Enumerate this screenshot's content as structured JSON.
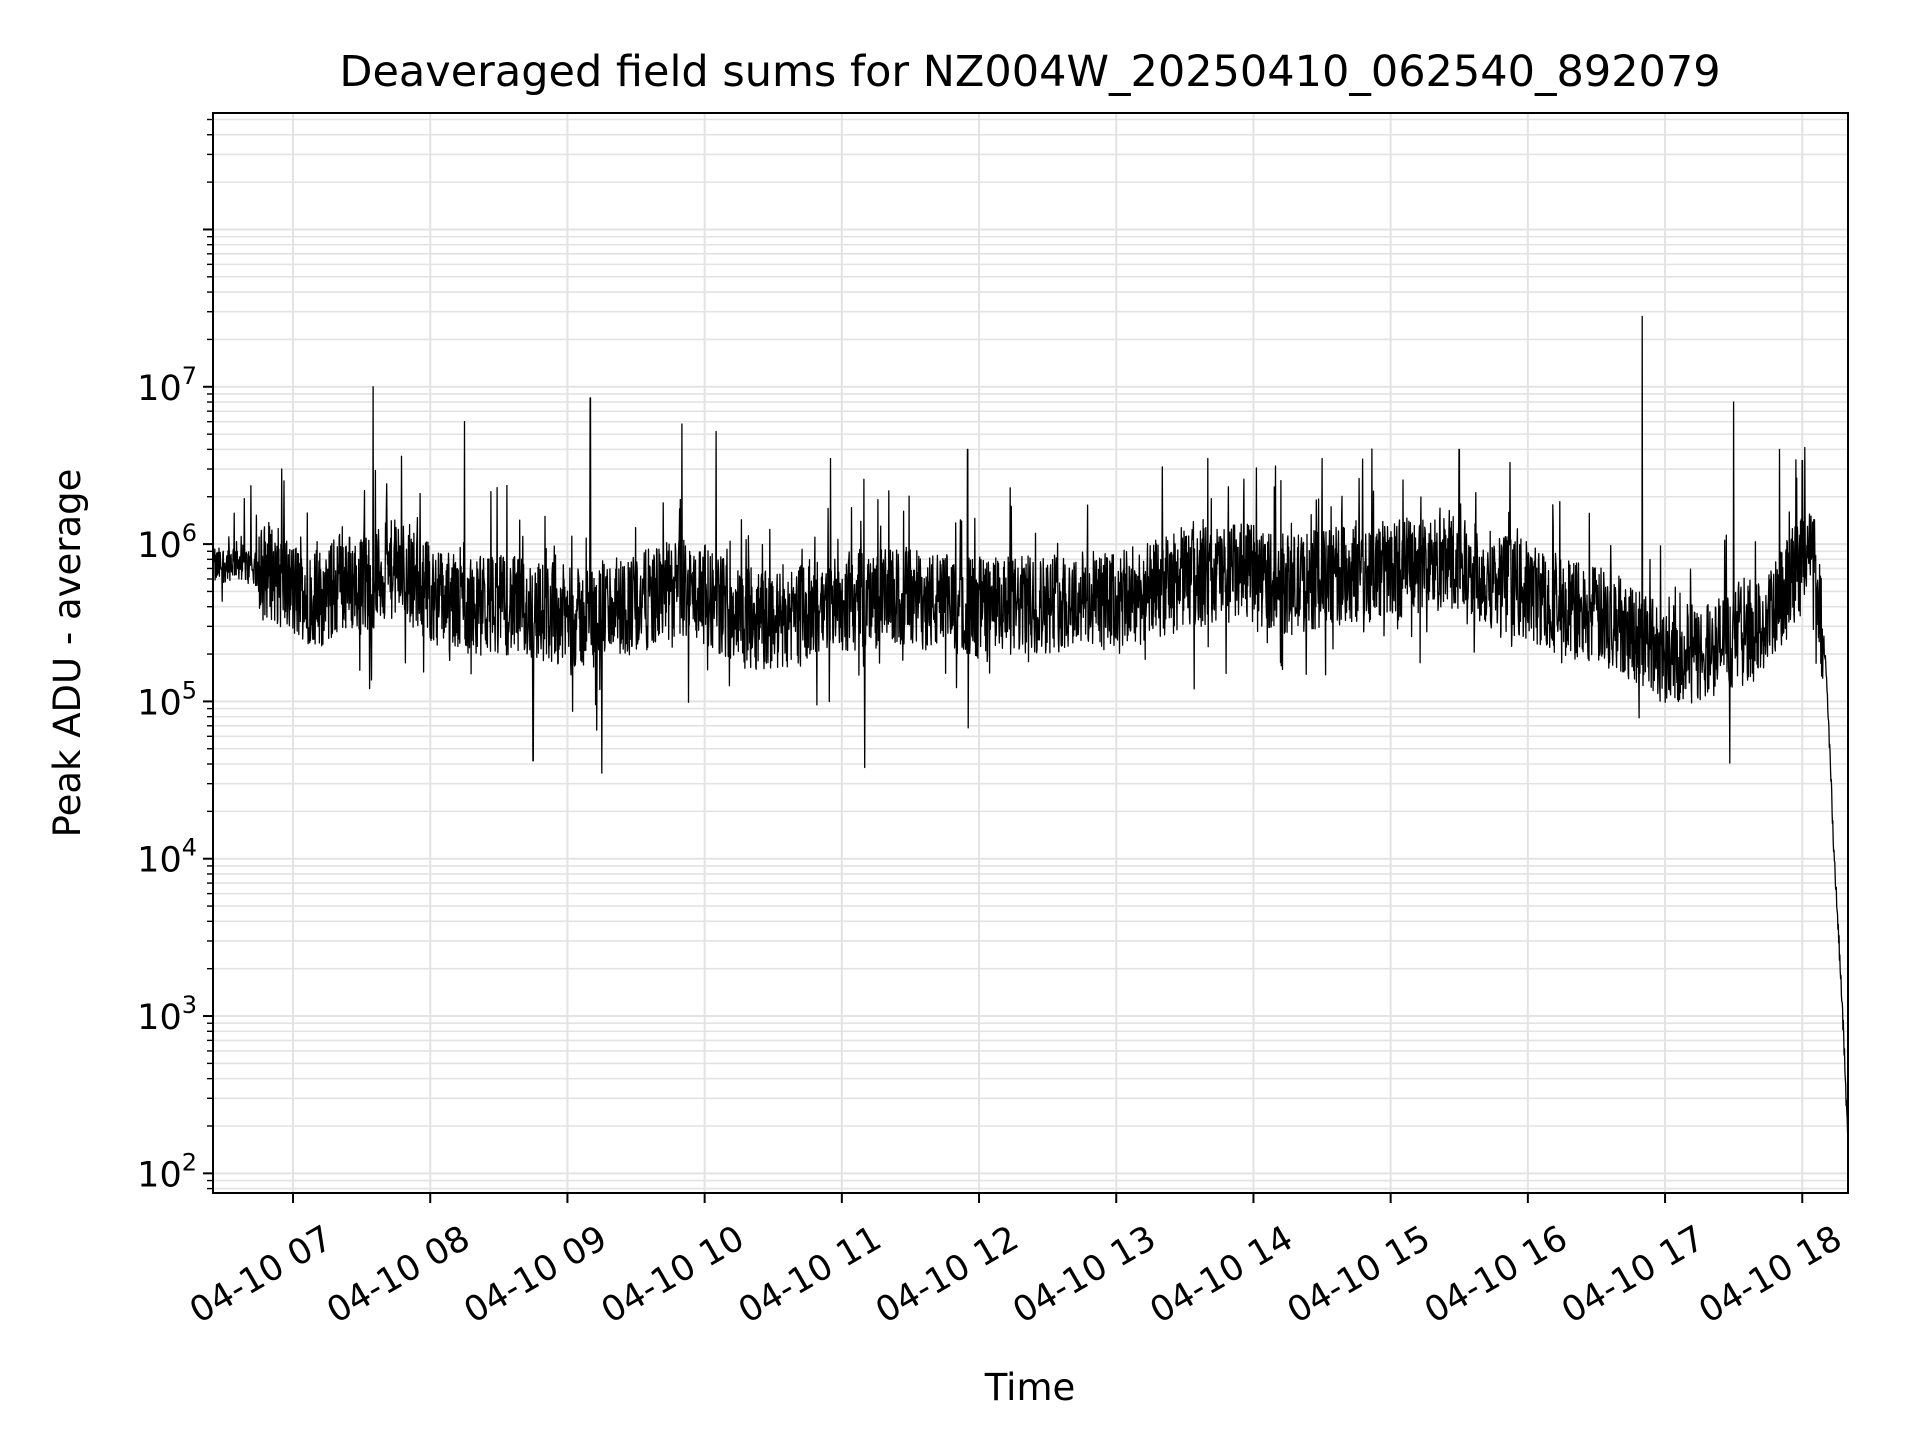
{
  "chart_data": {
    "type": "line",
    "title": "Deaveraged field sums for NZ004W_20250410_062540_892079",
    "xlabel": "Time",
    "ylabel": "Peak ADU - average",
    "x_scale": "time",
    "y_scale": "log",
    "xlim": [
      "2025-04-10 06:25",
      "2025-04-10 18:20"
    ],
    "ylim": [
      75,
      550000000
    ],
    "grid": true,
    "legend": "none",
    "x_ticks": [
      "04-10 07",
      "04-10 08",
      "04-10 09",
      "04-10 10",
      "04-10 11",
      "04-10 12",
      "04-10 13",
      "04-10 14",
      "04-10 15",
      "04-10 16",
      "04-10 17",
      "04-10 18"
    ],
    "x_tick_hours": [
      7,
      8,
      9,
      10,
      11,
      12,
      13,
      14,
      15,
      16,
      17,
      18
    ],
    "y_ticks": [
      {
        "base": "10",
        "exp": "2",
        "value": 100
      },
      {
        "base": "10",
        "exp": "3",
        "value": 1000
      },
      {
        "base": "10",
        "exp": "4",
        "value": 10000
      },
      {
        "base": "10",
        "exp": "5",
        "value": 100000
      },
      {
        "base": "10",
        "exp": "6",
        "value": 1000000
      },
      {
        "base": "10",
        "exp": "7",
        "value": 10000000
      }
    ],
    "colors": {
      "line": "#000000",
      "grid": "#e3e3e3",
      "background": "#ffffff"
    },
    "series": [
      {
        "color": "#000000",
        "x": [
          "06:25",
          "06:35",
          "06:45",
          "06:50",
          "07:00",
          "07:15",
          "07:20",
          "07:30",
          "07:45",
          "07:50",
          "08:00",
          "08:05",
          "08:15",
          "08:30",
          "08:45",
          "09:00",
          "09:07",
          "09:15",
          "09:30",
          "09:45",
          "09:50",
          "10:00",
          "10:15",
          "10:30",
          "10:45",
          "11:00",
          "11:15",
          "11:30",
          "11:45",
          "12:00",
          "12:15",
          "12:30",
          "12:45",
          "13:00",
          "13:15",
          "13:30",
          "13:45",
          "14:00",
          "14:15",
          "14:30",
          "14:45",
          "15:00",
          "15:15",
          "15:30",
          "15:45",
          "16:00",
          "16:15",
          "16:30",
          "16:45",
          "16:50",
          "17:00",
          "17:15",
          "17:30",
          "17:45",
          "18:00",
          "18:05",
          "18:07",
          "18:10",
          "18:12",
          "18:14",
          "18:16",
          "18:18",
          "18:20"
        ],
        "y": [
          700000,
          800000,
          650000,
          700000,
          500000,
          450000,
          600000,
          550000,
          700000,
          650000,
          500000,
          450000,
          400000,
          420000,
          380000,
          350000,
          330000,
          380000,
          420000,
          500000,
          520000,
          480000,
          350000,
          320000,
          380000,
          420000,
          450000,
          450000,
          420000,
          400000,
          400000,
          420000,
          450000,
          420000,
          500000,
          600000,
          650000,
          650000,
          550000,
          600000,
          650000,
          700000,
          750000,
          700000,
          600000,
          500000,
          400000,
          350000,
          300000,
          250000,
          200000,
          200000,
          250000,
          300000,
          800000,
          900000,
          500000,
          200000,
          50000,
          10000,
          3000,
          800,
          150
        ],
        "spikes": [
          {
            "x": "06:55",
            "y": 3000000
          },
          {
            "x": "07:35",
            "y": 10000000
          },
          {
            "x": "08:15",
            "y": 6000000
          },
          {
            "x": "09:10",
            "y": 8500000
          },
          {
            "x": "09:50",
            "y": 5800000
          },
          {
            "x": "10:05",
            "y": 5200000
          },
          {
            "x": "10:55",
            "y": 3500000
          },
          {
            "x": "11:55",
            "y": 4000000
          },
          {
            "x": "13:40",
            "y": 3500000
          },
          {
            "x": "14:30",
            "y": 3500000
          },
          {
            "x": "15:30",
            "y": 4000000
          },
          {
            "x": "16:50",
            "y": 28000000
          },
          {
            "x": "17:30",
            "y": 8000000
          },
          {
            "x": "17:50",
            "y": 4000000
          },
          {
            "x": "18:00",
            "y": 3400000
          },
          {
            "x": "09:15",
            "y": 35000
          },
          {
            "x": "11:10",
            "y": 38000
          },
          {
            "x": "08:45",
            "y": 42000
          }
        ]
      }
    ]
  }
}
